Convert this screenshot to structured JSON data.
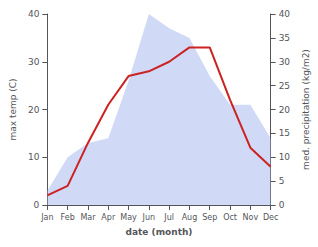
{
  "chart_data": {
    "type": "line",
    "categories": [
      "Jan",
      "Feb",
      "Mar",
      "Apr",
      "May",
      "Jun",
      "Jul",
      "Aug",
      "Sep",
      "Oct",
      "Nov",
      "Dec"
    ],
    "xlabel": "date (month)",
    "ylabel": "max temp (C)",
    "y2label": "med. precipitation (kg/m2)",
    "series": [
      {
        "type": "area",
        "axis": "y2",
        "color": "#aabbee",
        "values": [
          3,
          10,
          13,
          14,
          26,
          40,
          37,
          35,
          27,
          21,
          21,
          14
        ]
      },
      {
        "type": "line",
        "color": "#cc2222",
        "values": [
          2,
          4,
          13,
          21,
          27,
          28,
          30,
          33,
          33,
          22,
          12,
          8
        ]
      }
    ],
    "ylim": [
      0,
      40
    ],
    "yticks": [
      0,
      10,
      20,
      30,
      40
    ],
    "y2lim": [
      0,
      40
    ],
    "y2ticks": [
      0,
      5,
      10,
      15,
      20,
      25,
      30,
      35,
      40
    ],
    "grid": false
  }
}
